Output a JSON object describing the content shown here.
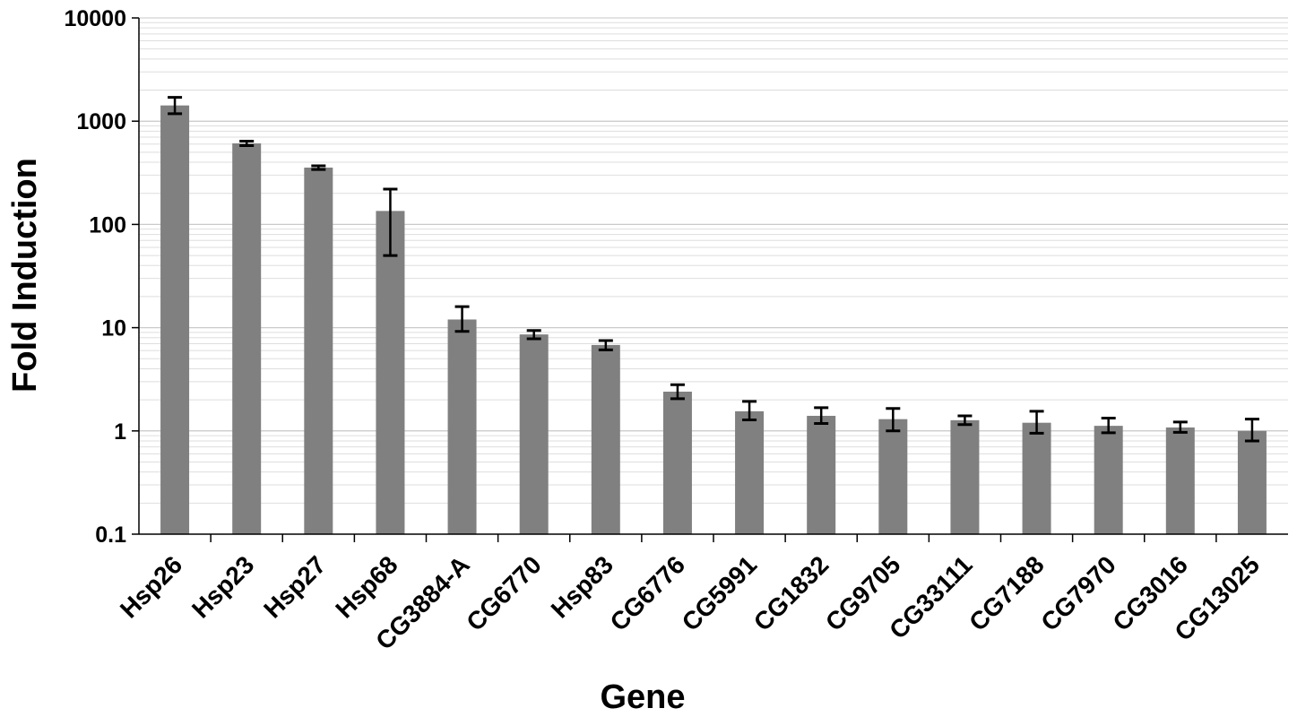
{
  "chart_data": {
    "type": "bar",
    "title": "",
    "xlabel": "Gene",
    "ylabel": "Fold Induction",
    "y_scale": "log",
    "ylim": [
      0.1,
      10000
    ],
    "y_ticks": [
      "0.1",
      "1",
      "10",
      "100",
      "1000",
      "10000"
    ],
    "grid": "horizontal minor gridlines",
    "bar_color": "#808080",
    "categories": [
      "Hsp26",
      "Hsp23",
      "Hsp27",
      "Hsp68",
      "CG3884-A",
      "CG6770",
      "Hsp83",
      "CG6776",
      "CG5991",
      "CG1832",
      "CG9705",
      "CG33111",
      "CG7188",
      "CG7970",
      "CG3016",
      "CG13025"
    ],
    "values": [
      1420,
      610,
      355,
      135,
      12,
      8.6,
      6.8,
      2.4,
      1.55,
      1.4,
      1.3,
      1.27,
      1.2,
      1.12,
      1.08,
      1.0
    ],
    "error_low": [
      1180,
      580,
      340,
      50,
      9.2,
      7.8,
      6.1,
      2.05,
      1.28,
      1.18,
      1.0,
      1.15,
      0.95,
      0.96,
      0.97,
      0.8
    ],
    "error_high": [
      1700,
      640,
      370,
      220,
      16,
      9.4,
      7.5,
      2.8,
      1.93,
      1.68,
      1.65,
      1.4,
      1.55,
      1.33,
      1.22,
      1.3
    ]
  }
}
